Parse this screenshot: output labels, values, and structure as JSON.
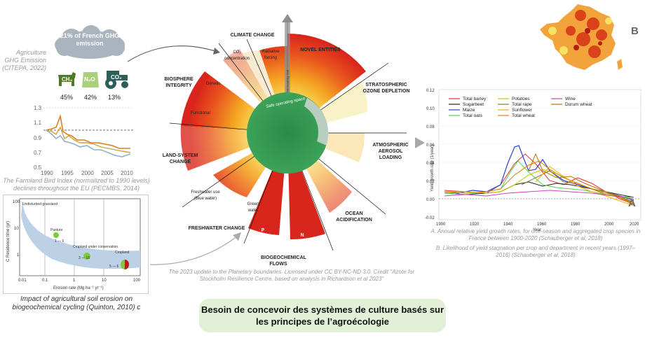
{
  "left": {
    "cloud_text": "21% of French GHG emission",
    "ghg_caption": "Agriculture GHG Emission (CITEPA, 2022)",
    "gases": [
      {
        "name": "CH₄",
        "pct": "45%"
      },
      {
        "name": "N₂O",
        "pct": "42%"
      },
      {
        "name": "CO₂",
        "pct": "13%"
      }
    ],
    "bird_chart": {
      "yticks": [
        "1.3",
        "1.1",
        "0.9",
        "0.7",
        "0.5"
      ],
      "xticks": [
        "1990",
        "1995",
        "2000",
        "2005",
        "2010"
      ],
      "caption": "The Farmland Bird Index (normalized to 1990 levels) declines throughout the EU (PECMBS, 2014)"
    },
    "erosion_chart": {
      "ylabel": "C Residence time (yr)",
      "xlabel": "Erosion rate (Mg ha⁻¹ yr⁻¹)",
      "yticks": [
        "100",
        "10",
        "1"
      ],
      "xticks": [
        "0.01",
        "0.1",
        "1",
        "10",
        "100"
      ],
      "labels": {
        "undisturbed": "Undisturbed grassland",
        "pasture": "Pasture",
        "pasture_range": "1 — 6",
        "conservation": "Cropland under conservation",
        "conservation_range": "3 — 16",
        "cropland": "Cropland",
        "cropland_range": "5 — 6"
      },
      "caption": "Impact of agricultural soil erosion on biogeochemical cycling (Quinton, 2010) c"
    }
  },
  "center": {
    "boundaries": {
      "climate": "CLIMATE CHANGE",
      "co2": "CO₂ concentration",
      "radiative": "Radiative forcing",
      "novel": "NOVEL ENTITIES",
      "ozone": "STRATOSPHERIC OZONE DEPLETION",
      "aerosol": "ATMOSPHERIC AEROSOL LOADING",
      "ocean": "OCEAN ACIDIFICATION",
      "biogeo": "BIOGEOCHEMICAL FLOWS",
      "p": "P",
      "n": "N",
      "freshwater": "FRESHWATER CHANGE",
      "green_water": "Green water",
      "blue_water": "Freshwater use (Blue water)",
      "land": "LAND-SYSTEM CHANGE",
      "biosphere": "BIOSPHERE INTEGRITY",
      "genetic": "Genetic",
      "functional": "Functional"
    },
    "arrow_text": "Increasing risk",
    "safe_space": "Safe operating space",
    "credit": "The 2023 update to the Planetary boundaries. Licensed under CC BY-NC-ND 3.0. Credit \"Azote for Stockholm Resilience Centre, based on analysis in Richardson et al 2023\""
  },
  "right": {
    "panel_letter_b": "B",
    "panel_letter_a": "A",
    "yield_chart": {
      "ylabel": "Yield growth rate (1/year)",
      "xlabel": "Year",
      "yticks": [
        "0.12",
        "0.10",
        "0.08",
        "0.06",
        "0.04",
        "0.02",
        "0.00",
        "-0.02"
      ],
      "xticks": [
        "1900",
        "1920",
        "1940",
        "1960",
        "1980",
        "2000",
        "2020"
      ],
      "legend": [
        {
          "name": "Total barley",
          "color": "#e03030"
        },
        {
          "name": "Sugarbeet",
          "color": "#222222"
        },
        {
          "name": "Maize",
          "color": "#2a3fd6"
        },
        {
          "name": "Total oats",
          "color": "#4fd34f"
        },
        {
          "name": "Potatoes",
          "color": "#c8c800"
        },
        {
          "name": "Total rape",
          "color": "#8a7a30"
        },
        {
          "name": "Sunflower",
          "color": "#f0b000"
        },
        {
          "name": "Total wheat",
          "color": "#f08000"
        },
        {
          "name": "Wine",
          "color": "#d040c0"
        },
        {
          "name": "Durum wheat",
          "color": "#c07000"
        }
      ]
    },
    "caption_a": "A.    Annual relative yield growth rates, for one-season and aggregated crop species in France between 1900-2020 (Schauberger et al, 2018)",
    "caption_b": "B. Likelihood of yield stagnation per crop and department in recent years (1997–2016) (Schauberger et al, 2018)"
  },
  "conclusion": "Besoin de concevoir des systèmes de culture basés sur les principes de l’agroécologie"
}
